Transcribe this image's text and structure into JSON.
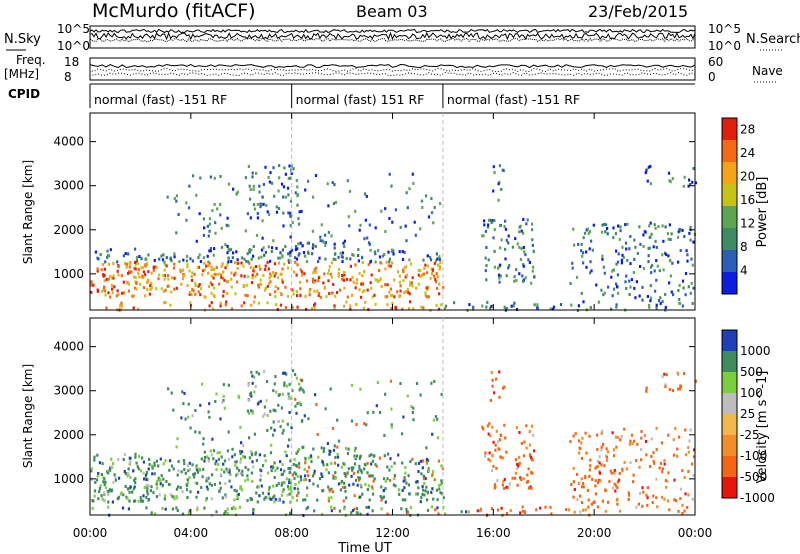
{
  "header": {
    "station": "McMurdo (fitACF)",
    "beam": "Beam 03",
    "date": "23/Feb/2015"
  },
  "noise_panel": {
    "left_label": "N.Sky",
    "right_label": "N.Search",
    "left_ticks": [
      "10^5",
      "10^0"
    ],
    "right_ticks": [
      "10^5",
      "10^0"
    ]
  },
  "freq_panel": {
    "left_label_1": "Freq.",
    "left_label_2": "[MHz]",
    "right_label": "Nave",
    "left_ticks": [
      "18",
      "8"
    ],
    "right_ticks": [
      "60",
      "0"
    ]
  },
  "cpid_panel": {
    "label": "CPID",
    "segments": [
      {
        "text": "normal (fast) -151 RF",
        "start_h": 0,
        "end_h": 8
      },
      {
        "text": "normal (fast) 151 RF",
        "start_h": 8,
        "end_h": 14
      },
      {
        "text": "normal (fast) -151 RF",
        "start_h": 14,
        "end_h": 24
      }
    ]
  },
  "chart_data": [
    {
      "type": "heatmap",
      "title": "",
      "xlabel": "Time UT",
      "ylabel": "Slant Range [km]",
      "xlim": [
        0,
        24
      ],
      "ylim": [
        180,
        4650
      ],
      "x_ticks": [
        "00:00",
        "04:00",
        "08:00",
        "12:00",
        "16:00",
        "20:00",
        "00:00"
      ],
      "y_ticks": [
        "1000",
        "2000",
        "3000",
        "4000"
      ],
      "colorbar": {
        "label": "Power [dB]",
        "ticks": [
          "4",
          "8",
          "12",
          "16",
          "20",
          "24",
          "28"
        ],
        "range": [
          0,
          30
        ],
        "colors": [
          "#0a1de0",
          "#2b5fb7",
          "#3f8c62",
          "#5ea552",
          "#c7c218",
          "#f3a517",
          "#f26a12",
          "#e0200f"
        ]
      }
    },
    {
      "type": "heatmap",
      "title": "",
      "xlabel": "Time UT",
      "ylabel": "Slant Range [km]",
      "xlim": [
        0,
        24
      ],
      "ylim": [
        180,
        4650
      ],
      "x_ticks": [
        "00:00",
        "04:00",
        "08:00",
        "12:00",
        "16:00",
        "20:00",
        "00:00"
      ],
      "y_ticks": [
        "1000",
        "2000",
        "3000",
        "4000"
      ],
      "colorbar": {
        "label": "Velocity [m s^-1]",
        "ticks": [
          "1000",
          "500",
          "100",
          "25",
          "-25",
          "-100",
          "-500",
          "-1000"
        ],
        "colors": [
          "#1f3fb5",
          "#3d8c5b",
          "#7bcf3c",
          "#bdbdbd",
          "#f2b84b",
          "#f28e25",
          "#f36614",
          "#e8150f"
        ]
      }
    }
  ],
  "xaxis": {
    "label": "Time UT",
    "ticks": [
      "00:00",
      "04:00",
      "08:00",
      "12:00",
      "16:00",
      "20:00",
      "00:00"
    ]
  }
}
